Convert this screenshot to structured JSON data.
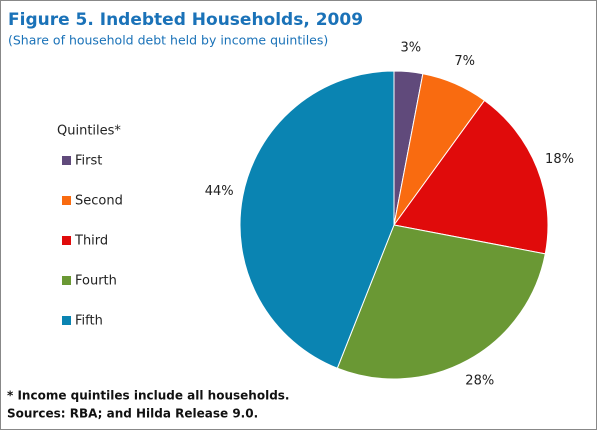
{
  "chart_data": {
    "type": "pie",
    "title": "Figure 5. Indebted Households, 2009",
    "subtitle": "(Share of household debt held by income quintiles)",
    "legend_title": "Quintiles*",
    "categories": [
      "First",
      "Second",
      "Third",
      "Fourth",
      "Fifth"
    ],
    "values": [
      3,
      7,
      18,
      28,
      44
    ],
    "value_labels": [
      "3%",
      "7%",
      "18%",
      "28%",
      "44%"
    ],
    "colors": [
      "#604a7b",
      "#f96b10",
      "#e00b0b",
      "#6a9834",
      "#0a84b2"
    ],
    "notes": [
      "* Income quintiles include all households.",
      "Sources: RBA; and Hilda Release 9.0."
    ]
  }
}
